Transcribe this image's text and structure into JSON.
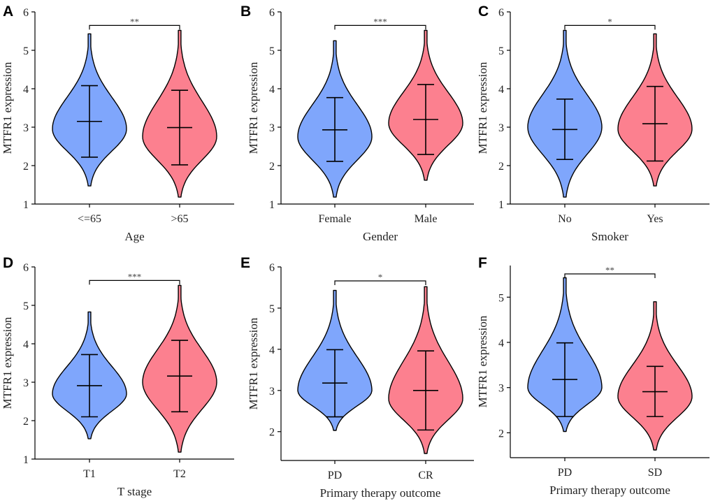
{
  "chart_data": [
    {
      "type": "violin",
      "panel": "A",
      "xlabel": "Age",
      "ylabel": "MTFR1 expression",
      "ylim": [
        1,
        6
      ],
      "yticks": [
        1,
        2,
        3,
        4,
        5,
        6
      ],
      "categories": [
        "<=65",
        ">65"
      ],
      "significance": "**",
      "series": [
        {
          "name": "<=65",
          "color": "#7FA6FC",
          "median": 3.15,
          "lower": 2.22,
          "upper": 4.08,
          "min": 1.47,
          "max": 5.43,
          "peak": 2.95
        },
        {
          "name": ">65",
          "color": "#FC808F",
          "median": 2.99,
          "lower": 2.02,
          "upper": 3.96,
          "min": 1.18,
          "max": 5.52,
          "peak": 2.75
        }
      ]
    },
    {
      "type": "violin",
      "panel": "B",
      "xlabel": "Gender",
      "ylabel": "MTFR1 expression",
      "ylim": [
        1,
        6
      ],
      "yticks": [
        1,
        2,
        3,
        4,
        5,
        6
      ],
      "categories": [
        "Female",
        "Male"
      ],
      "significance": "***",
      "series": [
        {
          "name": "Female",
          "color": "#7FA6FC",
          "median": 2.93,
          "lower": 2.11,
          "upper": 3.77,
          "min": 1.18,
          "max": 5.25,
          "peak": 2.75
        },
        {
          "name": "Male",
          "color": "#FC808F",
          "median": 3.2,
          "lower": 2.29,
          "upper": 4.11,
          "min": 1.62,
          "max": 5.52,
          "peak": 3.1
        }
      ]
    },
    {
      "type": "violin",
      "panel": "C",
      "xlabel": "Smoker",
      "ylabel": "MTFR1 expression",
      "ylim": [
        1,
        6
      ],
      "yticks": [
        1,
        2,
        3,
        4,
        5,
        6
      ],
      "categories": [
        "No",
        "Yes"
      ],
      "significance": "*",
      "series": [
        {
          "name": "No",
          "color": "#7FA6FC",
          "median": 2.94,
          "lower": 2.16,
          "upper": 3.73,
          "min": 1.18,
          "max": 5.52,
          "peak": 3.0
        },
        {
          "name": "Yes",
          "color": "#FC808F",
          "median": 3.09,
          "lower": 2.12,
          "upper": 4.06,
          "min": 1.47,
          "max": 5.43,
          "peak": 2.95
        }
      ]
    },
    {
      "type": "violin",
      "panel": "D",
      "xlabel": "T stage",
      "ylabel": "MTFR1 expression",
      "ylim": [
        1,
        6
      ],
      "yticks": [
        1,
        2,
        3,
        4,
        5,
        6
      ],
      "categories": [
        "T1",
        "T2"
      ],
      "significance": "***",
      "series": [
        {
          "name": "T1",
          "color": "#7FA6FC",
          "median": 2.91,
          "lower": 2.1,
          "upper": 3.72,
          "min": 1.53,
          "max": 4.83,
          "peak": 2.7
        },
        {
          "name": "T2",
          "color": "#FC808F",
          "median": 3.16,
          "lower": 2.23,
          "upper": 4.09,
          "min": 1.18,
          "max": 5.52,
          "peak": 3.0
        }
      ]
    },
    {
      "type": "violin",
      "panel": "E",
      "xlabel": "Primary therapy outcome",
      "ylabel": "MTFR1 expression",
      "ylim": [
        1.3,
        6
      ],
      "yticks": [
        2,
        3,
        4,
        5,
        6
      ],
      "categories": [
        "PD",
        "CR"
      ],
      "significance": "*",
      "series": [
        {
          "name": "PD",
          "color": "#7FA6FC",
          "median": 3.18,
          "lower": 2.36,
          "upper": 3.99,
          "min": 2.03,
          "max": 5.43,
          "peak": 3.0
        },
        {
          "name": "CR",
          "color": "#FC808F",
          "median": 3.0,
          "lower": 2.04,
          "upper": 3.96,
          "min": 1.47,
          "max": 5.52,
          "peak": 2.8
        }
      ]
    },
    {
      "type": "violin",
      "panel": "F",
      "xlabel": "Primary therapy outcome",
      "ylabel": "MTFR1 expression",
      "ylim": [
        1.45,
        5.7
      ],
      "yticks": [
        2,
        3,
        4,
        5
      ],
      "categories": [
        "PD",
        "SD"
      ],
      "significance": "**",
      "series": [
        {
          "name": "PD",
          "color": "#7FA6FC",
          "median": 3.18,
          "lower": 2.36,
          "upper": 3.99,
          "min": 2.03,
          "max": 5.43,
          "peak": 3.0
        },
        {
          "name": "SD",
          "color": "#FC808F",
          "median": 2.91,
          "lower": 2.36,
          "upper": 3.47,
          "min": 1.62,
          "max": 4.9,
          "peak": 2.8
        }
      ]
    }
  ]
}
